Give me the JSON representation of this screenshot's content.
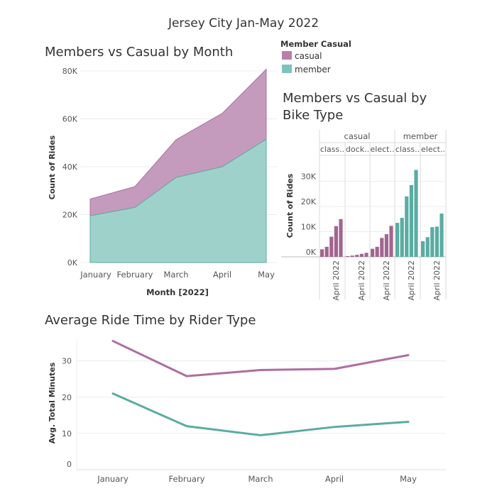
{
  "dashboard": {
    "title": "Jersey City Jan-May 2022"
  },
  "legend": {
    "title": "Member Casual",
    "items": [
      {
        "label": "casual",
        "color": "#b97fa8"
      },
      {
        "label": "member",
        "color": "#7ec2bc"
      }
    ]
  },
  "colors": {
    "casual_fill": "#c49bbd",
    "member_fill": "#9fd1cb",
    "casual_line": "#ac6fa0",
    "member_line": "#5aaca2",
    "casual_bar": "#a2658f",
    "member_bar": "#5aaca2",
    "grid": "#ececec",
    "axis": "#999999"
  },
  "chart_data": [
    {
      "type": "area",
      "title": "Members vs Casual by Month",
      "xlabel": "Month [2022]",
      "ylabel": "Count of Rides",
      "categories": [
        "January",
        "February",
        "March",
        "April",
        "May"
      ],
      "ylim": [
        0,
        80000
      ],
      "yticks": [
        0,
        20000,
        40000,
        60000,
        80000
      ],
      "ytick_labels": [
        "0K",
        "20K",
        "40K",
        "60K",
        "80K"
      ],
      "stacked": true,
      "series": [
        {
          "name": "member",
          "values": [
            19500,
            23000,
            35500,
            40000,
            51500
          ]
        },
        {
          "name": "casual",
          "values": [
            7000,
            8700,
            15800,
            22300,
            29200
          ]
        }
      ],
      "grid": true
    },
    {
      "type": "bar",
      "title": "Members vs Casual by Bike Type",
      "ylabel": "Count of Rides",
      "ylim": [
        0,
        40000
      ],
      "yticks": [
        0,
        10000,
        20000,
        30000
      ],
      "ytick_labels": [
        "0K",
        "10K",
        "20K",
        "30K"
      ],
      "group_headers": [
        "casual",
        "member"
      ],
      "panels": [
        {
          "group": "casual",
          "label": "class..",
          "xtick": "April 2022",
          "values": [
            3000,
            4000,
            8000,
            12200,
            15000
          ]
        },
        {
          "group": "casual",
          "label": "dock..",
          "xtick": "April 2022",
          "values": [
            300,
            500,
            800,
            1200,
            1600
          ]
        },
        {
          "group": "casual",
          "label": "elect..",
          "xtick": "April 2022",
          "values": [
            3200,
            4000,
            7500,
            9000,
            12300
          ]
        },
        {
          "group": "member",
          "label": "class..",
          "xtick": "April 2022",
          "values": [
            13500,
            15500,
            24000,
            28500,
            34500
          ]
        },
        {
          "group": "member",
          "label": "elect..",
          "xtick": "April 2022",
          "values": [
            6200,
            7800,
            11800,
            12000,
            17200
          ]
        }
      ],
      "grid": true
    },
    {
      "type": "line",
      "title": "Average Ride Time by Rider Type",
      "ylabel": "Avg. Total Minutes",
      "categories": [
        "January",
        "February",
        "March",
        "April",
        "May"
      ],
      "ylim": [
        0,
        36
      ],
      "yticks": [
        0,
        10,
        20,
        30
      ],
      "ytick_labels": [
        "0",
        "10",
        "20",
        "30"
      ],
      "series": [
        {
          "name": "casual",
          "values": [
            35.5,
            25.8,
            27.5,
            27.8,
            31.6
          ]
        },
        {
          "name": "member",
          "values": [
            21.0,
            12.0,
            9.5,
            11.8,
            13.2
          ]
        }
      ],
      "grid": true
    }
  ]
}
